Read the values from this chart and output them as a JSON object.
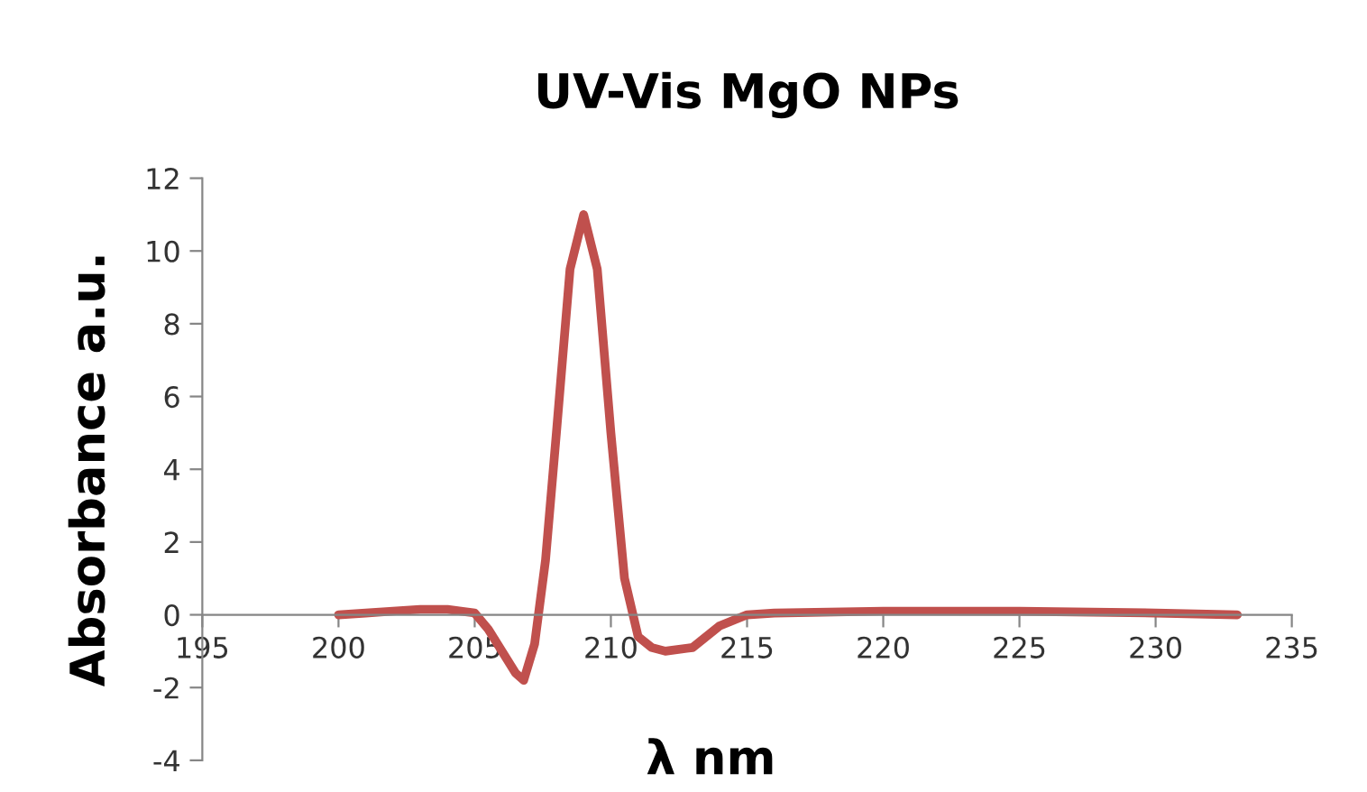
{
  "chart_data": {
    "type": "line",
    "title": "UV-Vis MgO NPs",
    "xlabel": "λ nm",
    "ylabel": "Absorbance a.u.",
    "x": [
      200,
      201,
      202,
      203,
      204,
      205,
      205.5,
      206,
      206.5,
      206.8,
      207.2,
      207.6,
      208,
      208.5,
      209,
      209.5,
      210,
      210.5,
      211,
      211.5,
      212,
      213,
      214,
      215,
      216,
      220,
      225,
      230,
      233
    ],
    "series": [
      {
        "color": "#c0504d",
        "values": [
          0,
          0.05,
          0.1,
          0.15,
          0.15,
          0.05,
          -0.4,
          -1.0,
          -1.6,
          -1.8,
          -0.8,
          1.5,
          5,
          9.5,
          11,
          9.5,
          5,
          1,
          -0.6,
          -0.9,
          -1.0,
          -0.9,
          -0.3,
          0,
          0.05,
          0.1,
          0.1,
          0.05,
          0
        ]
      }
    ],
    "xlim": [
      195,
      235
    ],
    "xticks": [
      195,
      200,
      205,
      210,
      215,
      220,
      225,
      230,
      235
    ],
    "ylim": [
      -4,
      12
    ],
    "yticks": [
      -4,
      -2,
      0,
      2,
      4,
      6,
      8,
      10,
      12
    ],
    "grid": false,
    "legend": false,
    "marker": "none",
    "line_style": "solid"
  }
}
